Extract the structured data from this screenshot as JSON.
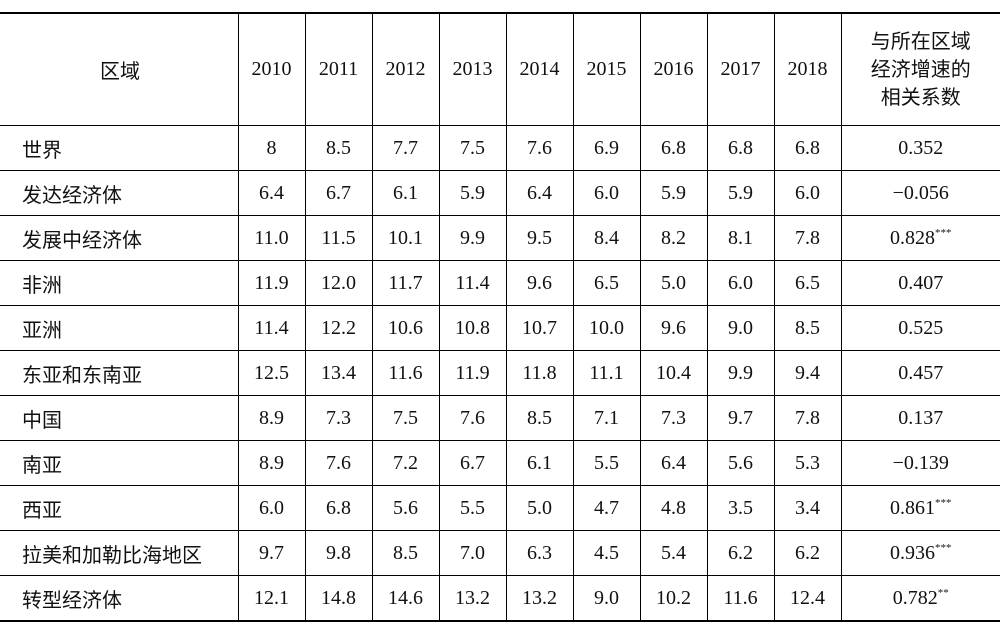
{
  "table": {
    "header": [
      "区域",
      "2010",
      "2011",
      "2012",
      "2013",
      "2014",
      "2015",
      "2016",
      "2017",
      "2018",
      "与所在区域经济增速的相关系数"
    ],
    "rows": [
      {
        "region": "世界",
        "values": [
          "8",
          "8.5",
          "7.7",
          "7.5",
          "7.6",
          "6.9",
          "6.8",
          "6.8",
          "6.8"
        ],
        "corr": "0.352"
      },
      {
        "region": "发达经济体",
        "values": [
          "6.4",
          "6.7",
          "6.1",
          "5.9",
          "6.4",
          "6.0",
          "5.9",
          "5.9",
          "6.0"
        ],
        "corr": "−0.056"
      },
      {
        "region": "发展中经济体",
        "values": [
          "11.0",
          "11.5",
          "10.1",
          "9.9",
          "9.5",
          "8.4",
          "8.2",
          "8.1",
          "7.8"
        ],
        "corr": "0.828",
        "sig": "***"
      },
      {
        "region": "非洲",
        "values": [
          "11.9",
          "12.0",
          "11.7",
          "11.4",
          "9.6",
          "6.5",
          "5.0",
          "6.0",
          "6.5"
        ],
        "corr": "0.407"
      },
      {
        "region": "亚洲",
        "values": [
          "11.4",
          "12.2",
          "10.6",
          "10.8",
          "10.7",
          "10.0",
          "9.6",
          "9.0",
          "8.5"
        ],
        "corr": "0.525"
      },
      {
        "region": "东亚和东南亚",
        "values": [
          "12.5",
          "13.4",
          "11.6",
          "11.9",
          "11.8",
          "11.1",
          "10.4",
          "9.9",
          "9.4"
        ],
        "corr": "0.457"
      },
      {
        "region": "中国",
        "values": [
          "8.9",
          "7.3",
          "7.5",
          "7.6",
          "8.5",
          "7.1",
          "7.3",
          "9.7",
          "7.8"
        ],
        "corr": "0.137"
      },
      {
        "region": "南亚",
        "values": [
          "8.9",
          "7.6",
          "7.2",
          "6.7",
          "6.1",
          "5.5",
          "6.4",
          "5.6",
          "5.3"
        ],
        "corr": "−0.139"
      },
      {
        "region": "西亚",
        "values": [
          "6.0",
          "6.8",
          "5.6",
          "5.5",
          "5.0",
          "4.7",
          "4.8",
          "3.5",
          "3.4"
        ],
        "corr": "0.861",
        "sig": "***"
      },
      {
        "region": "拉美和加勒比海地区",
        "values": [
          "9.7",
          "9.8",
          "8.5",
          "7.0",
          "6.3",
          "4.5",
          "5.4",
          "6.2",
          "6.2"
        ],
        "corr": "0.936",
        "sig": "***"
      },
      {
        "region": "转型经济体",
        "values": [
          "12.1",
          "14.8",
          "14.6",
          "13.2",
          "13.2",
          "9.0",
          "10.2",
          "11.6",
          "12.4"
        ],
        "corr": "0.782",
        "sig": "**"
      }
    ]
  }
}
